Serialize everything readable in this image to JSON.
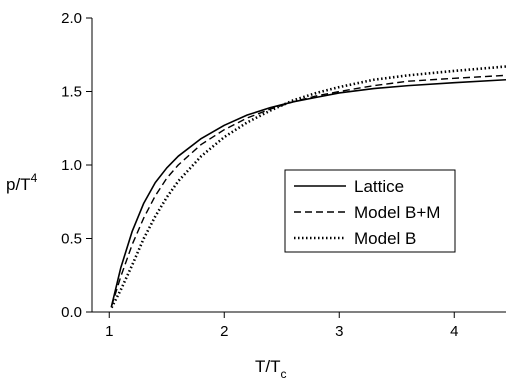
{
  "chart_data": {
    "type": "line",
    "xlabel": "T/T",
    "xlabel_sub": "c",
    "ylabel": "p/T",
    "ylabel_sup": "4",
    "xlim": [
      0.85,
      4.45
    ],
    "ylim": [
      0.0,
      2.0
    ],
    "xticks": [
      1,
      2,
      3,
      4
    ],
    "yticks": [
      0.0,
      0.5,
      1.0,
      1.5,
      2.0
    ],
    "ytick_labels": [
      "0.0",
      "0.5",
      "1.0",
      "1.5",
      "2.0"
    ],
    "grid": false,
    "legend_position": "center-right",
    "series": [
      {
        "name": "Lattice",
        "style": "solid",
        "x": [
          1.02,
          1.1,
          1.2,
          1.3,
          1.4,
          1.5,
          1.6,
          1.8,
          2.0,
          2.2,
          2.4,
          2.6,
          2.8,
          3.0,
          3.3,
          3.6,
          4.0,
          4.45
        ],
        "y": [
          0.04,
          0.3,
          0.55,
          0.74,
          0.88,
          0.98,
          1.06,
          1.18,
          1.27,
          1.34,
          1.39,
          1.43,
          1.46,
          1.49,
          1.52,
          1.54,
          1.56,
          1.58
        ]
      },
      {
        "name": "Model B+M",
        "style": "dashed",
        "x": [
          1.02,
          1.1,
          1.2,
          1.3,
          1.4,
          1.5,
          1.6,
          1.8,
          2.0,
          2.2,
          2.4,
          2.6,
          2.8,
          3.0,
          3.3,
          3.6,
          4.0,
          4.45
        ],
        "y": [
          0.04,
          0.24,
          0.46,
          0.64,
          0.79,
          0.91,
          1.0,
          1.14,
          1.24,
          1.32,
          1.38,
          1.43,
          1.47,
          1.5,
          1.54,
          1.57,
          1.59,
          1.61
        ]
      },
      {
        "name": "Model B",
        "style": "dotted",
        "x": [
          1.02,
          1.1,
          1.2,
          1.3,
          1.4,
          1.5,
          1.6,
          1.8,
          2.0,
          2.2,
          2.4,
          2.6,
          2.8,
          3.0,
          3.3,
          3.6,
          4.0,
          4.45
        ],
        "y": [
          0.03,
          0.15,
          0.32,
          0.5,
          0.65,
          0.78,
          0.89,
          1.06,
          1.19,
          1.29,
          1.37,
          1.44,
          1.49,
          1.53,
          1.58,
          1.61,
          1.64,
          1.67
        ]
      }
    ]
  }
}
